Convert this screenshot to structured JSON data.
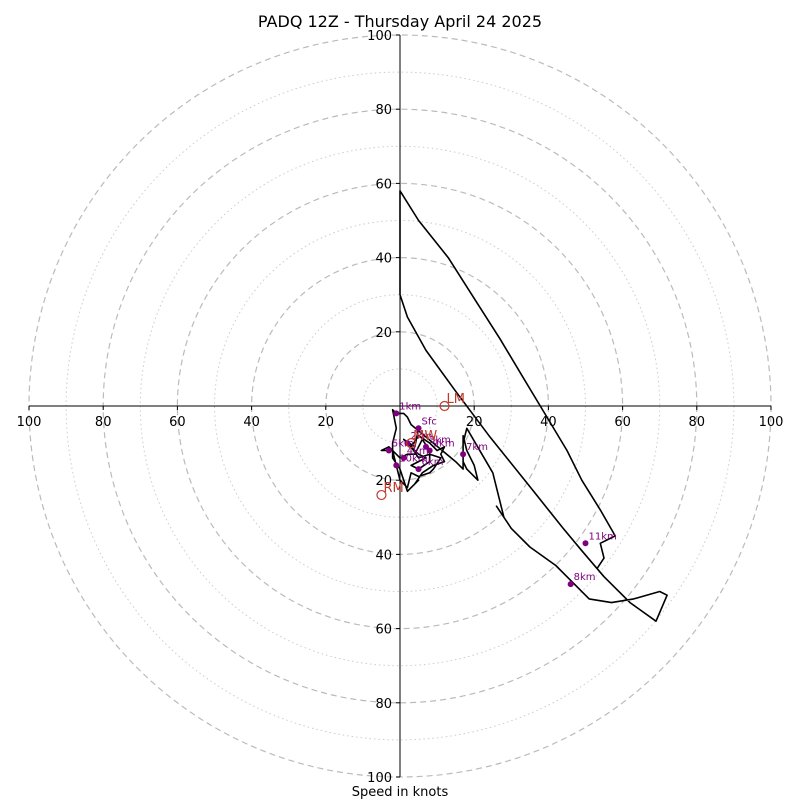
{
  "chart_data": {
    "type": "hodograph",
    "title": "PADQ 12Z - Thursday April 24 2025",
    "xlabel": "Speed in knots",
    "range": [
      -100,
      100
    ],
    "major_rings": [
      20,
      40,
      60,
      80,
      100
    ],
    "minor_rings": [
      10,
      30,
      50,
      70,
      90
    ],
    "axis_ticks": [
      {
        "value": -100,
        "label": "100"
      },
      {
        "value": -80,
        "label": "80"
      },
      {
        "value": -60,
        "label": "60"
      },
      {
        "value": -40,
        "label": "40"
      },
      {
        "value": -20,
        "label": "20"
      },
      {
        "value": 20,
        "label": "20"
      },
      {
        "value": 40,
        "label": "40"
      },
      {
        "value": 60,
        "label": "60"
      },
      {
        "value": 80,
        "label": "80"
      },
      {
        "value": 100,
        "label": "100"
      }
    ],
    "trace_color": "#000000",
    "trace": [
      [
        5,
        -6
      ],
      [
        4,
        -11
      ],
      [
        1,
        -9
      ],
      [
        5,
        -13
      ],
      [
        7,
        -14
      ],
      [
        3,
        -16
      ],
      [
        5,
        -17
      ],
      [
        8,
        -15
      ],
      [
        8,
        -12
      ],
      [
        6,
        -9
      ],
      [
        4,
        -13
      ],
      [
        2,
        -13
      ],
      [
        0,
        -14
      ],
      [
        -3,
        -11
      ],
      [
        -5,
        -12
      ],
      [
        -2,
        -12
      ],
      [
        -1,
        -16
      ],
      [
        0,
        -20
      ],
      [
        2,
        -22
      ],
      [
        3,
        -18
      ],
      [
        5,
        -19
      ],
      [
        8,
        -18
      ],
      [
        9,
        -17
      ],
      [
        11,
        -14
      ],
      [
        8,
        -13
      ],
      [
        5,
        -14
      ],
      [
        3,
        -11
      ],
      [
        5,
        -8
      ],
      [
        8,
        -10
      ],
      [
        10,
        -12
      ],
      [
        12,
        -11
      ],
      [
        11,
        -13
      ],
      [
        12,
        -15
      ],
      [
        9,
        -16
      ],
      [
        6,
        -18
      ],
      [
        4,
        -21
      ],
      [
        5,
        -20
      ],
      [
        2,
        -23
      ],
      [
        1,
        -20
      ],
      [
        0,
        -17
      ],
      [
        -2,
        -14
      ],
      [
        -2,
        -10
      ],
      [
        -1,
        -6
      ],
      [
        -2,
        -1
      ],
      [
        -1,
        -2
      ],
      [
        1,
        -2
      ],
      [
        2,
        -3
      ],
      [
        3,
        -5
      ],
      [
        15,
        -15
      ],
      [
        17,
        -17
      ],
      [
        17,
        -8
      ],
      [
        18,
        -12
      ],
      [
        20,
        -16
      ],
      [
        21,
        -20
      ],
      [
        18,
        -17
      ],
      [
        17,
        -15
      ],
      [
        17,
        -12
      ],
      [
        17,
        -10
      ],
      [
        18,
        -6
      ],
      [
        25,
        -18
      ],
      [
        28,
        -30
      ],
      [
        26,
        -27
      ],
      [
        30,
        -33
      ],
      [
        35,
        -38
      ],
      [
        42,
        -43
      ],
      [
        46,
        -47
      ],
      [
        51,
        -52
      ],
      [
        57,
        -53
      ],
      [
        63,
        -52
      ],
      [
        70,
        -50
      ],
      [
        72,
        -51
      ],
      [
        69,
        -58
      ],
      [
        62,
        -53
      ],
      [
        55,
        -46
      ],
      [
        49,
        -39
      ],
      [
        44,
        -33
      ],
      [
        36,
        -23
      ],
      [
        24,
        -8
      ],
      [
        15,
        4
      ],
      [
        7,
        15
      ],
      [
        2,
        24
      ],
      [
        0,
        30
      ],
      [
        0,
        58
      ],
      [
        5,
        50
      ],
      [
        13,
        40
      ],
      [
        20,
        29
      ],
      [
        27,
        18
      ],
      [
        33,
        8
      ],
      [
        39,
        -2
      ],
      [
        45,
        -12
      ],
      [
        49,
        -20
      ],
      [
        54,
        -28
      ],
      [
        58,
        -35
      ],
      [
        54,
        -37
      ],
      [
        55,
        -41
      ],
      [
        53,
        -44
      ]
    ],
    "levels": [
      {
        "label": "Sfc",
        "x": 5,
        "y": -6
      },
      {
        "label": "1km",
        "x": -1,
        "y": -2
      },
      {
        "label": "2km",
        "x": 2,
        "y": -10
      },
      {
        "label": "3km",
        "x": 7,
        "y": -11
      },
      {
        "label": "4km",
        "x": 1,
        "y": -14
      },
      {
        "label": "5km",
        "x": -3,
        "y": -12
      },
      {
        "label": "6km",
        "x": 5,
        "y": -17
      },
      {
        "label": "7km",
        "x": 17,
        "y": -13
      },
      {
        "label": "8km",
        "x": 46,
        "y": -48
      },
      {
        "label": "9km",
        "x": 8,
        "y": -12
      },
      {
        "label": "10km",
        "x": -1,
        "y": -16
      },
      {
        "label": "11km",
        "x": 50,
        "y": -37
      }
    ],
    "level_color": "#800080",
    "storm_motion": [
      {
        "label": "LM",
        "x": 12,
        "y": 0
      },
      {
        "label": "RM",
        "x": -5,
        "y": -24
      },
      {
        "label": "MW",
        "x": 3,
        "y": -10
      }
    ],
    "storm_color": "#c0392b",
    "grid_color": "#bbbbbb"
  }
}
